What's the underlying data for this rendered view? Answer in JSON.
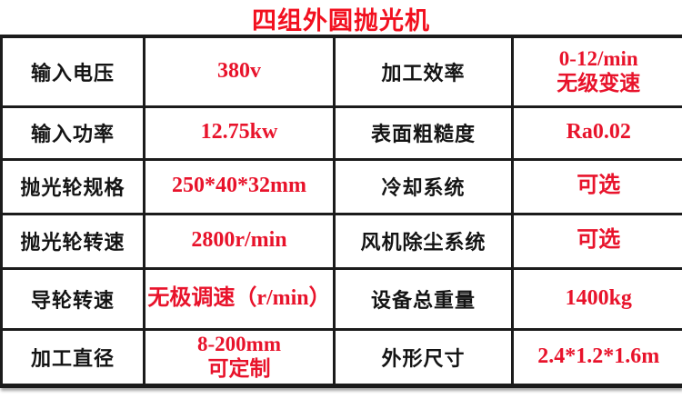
{
  "title": "四组外圆抛光机",
  "colors": {
    "title_red": "#f2101f",
    "value_red": "#e8132b",
    "text_black": "#141414",
    "border_black": "#1b1b1b"
  },
  "table": {
    "rows": [
      {
        "cells": [
          {
            "kind": "label",
            "lines": [
              "输入电压"
            ]
          },
          {
            "kind": "value",
            "lines": [
              "380v"
            ]
          },
          {
            "kind": "label",
            "lines": [
              "加工效率"
            ]
          },
          {
            "kind": "value",
            "lines": [
              "0-12/min",
              "无级变速"
            ]
          }
        ]
      },
      {
        "cells": [
          {
            "kind": "label",
            "lines": [
              "输入功率"
            ]
          },
          {
            "kind": "value",
            "lines": [
              "12.75kw"
            ]
          },
          {
            "kind": "label",
            "lines": [
              "表面粗糙度"
            ]
          },
          {
            "kind": "value",
            "lines": [
              "Ra0.02"
            ]
          }
        ]
      },
      {
        "cells": [
          {
            "kind": "label",
            "lines": [
              "抛光轮规格"
            ]
          },
          {
            "kind": "value",
            "lines": [
              "250*40*32mm"
            ]
          },
          {
            "kind": "label",
            "lines": [
              "冷却系统"
            ]
          },
          {
            "kind": "value",
            "lines": [
              "可选"
            ]
          }
        ]
      },
      {
        "cells": [
          {
            "kind": "label",
            "lines": [
              "抛光轮转速"
            ]
          },
          {
            "kind": "value",
            "lines": [
              "2800r/min"
            ]
          },
          {
            "kind": "label",
            "lines": [
              "风机除尘系统"
            ]
          },
          {
            "kind": "value",
            "lines": [
              "可选"
            ]
          }
        ]
      },
      {
        "cells": [
          {
            "kind": "label",
            "lines": [
              "导轮转速"
            ]
          },
          {
            "kind": "value",
            "lines": [
              "无极调速（r/min）"
            ]
          },
          {
            "kind": "label",
            "lines": [
              "设备总重量"
            ]
          },
          {
            "kind": "value",
            "lines": [
              "1400kg"
            ]
          }
        ]
      },
      {
        "cells": [
          {
            "kind": "label",
            "lines": [
              "加工直径"
            ]
          },
          {
            "kind": "value",
            "lines": [
              "8-200mm",
              "可定制"
            ]
          },
          {
            "kind": "label",
            "lines": [
              "外形尺寸"
            ]
          },
          {
            "kind": "value",
            "lines": [
              "2.4*1.2*1.6m"
            ]
          }
        ]
      }
    ]
  }
}
